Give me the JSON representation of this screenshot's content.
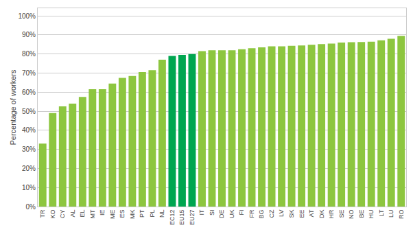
{
  "chart_data": {
    "type": "bar",
    "categories": [
      "TR",
      "KO",
      "CY",
      "AL",
      "EL",
      "MT",
      "IE",
      "ME",
      "ES",
      "MK",
      "PT",
      "PL",
      "NL",
      "EC12",
      "EU15",
      "EU27",
      "IT",
      "SI",
      "DE",
      "UK",
      "FI",
      "FR",
      "BG",
      "CZ",
      "LV",
      "SK",
      "EE",
      "AT",
      "DK",
      "HR",
      "SE",
      "NO",
      "BE",
      "HU",
      "LT",
      "LU",
      "RO"
    ],
    "values": [
      0.33,
      0.49,
      0.525,
      0.54,
      0.575,
      0.615,
      0.615,
      0.645,
      0.675,
      0.685,
      0.705,
      0.715,
      0.77,
      0.79,
      0.795,
      0.8,
      0.815,
      0.82,
      0.82,
      0.82,
      0.825,
      0.83,
      0.835,
      0.84,
      0.84,
      0.843,
      0.845,
      0.848,
      0.852,
      0.855,
      0.86,
      0.862,
      0.863,
      0.865,
      0.872,
      0.88,
      0.895
    ],
    "colors": [
      "#8dc63f",
      "#8dc63f",
      "#8dc63f",
      "#8dc63f",
      "#8dc63f",
      "#8dc63f",
      "#8dc63f",
      "#8dc63f",
      "#8dc63f",
      "#8dc63f",
      "#8dc63f",
      "#8dc63f",
      "#8dc63f",
      "#00a650",
      "#00a650",
      "#00a650",
      "#8dc63f",
      "#8dc63f",
      "#8dc63f",
      "#8dc63f",
      "#8dc63f",
      "#8dc63f",
      "#8dc63f",
      "#8dc63f",
      "#8dc63f",
      "#8dc63f",
      "#8dc63f",
      "#8dc63f",
      "#8dc63f",
      "#8dc63f",
      "#8dc63f",
      "#8dc63f",
      "#8dc63f",
      "#8dc63f",
      "#8dc63f",
      "#8dc63f",
      "#8dc63f"
    ],
    "ylabel": "Percentage of workers",
    "ylim": [
      0,
      1.04
    ],
    "yticks": [
      {
        "value": 0.0,
        "label": "0%"
      },
      {
        "value": 0.1,
        "label": "10%"
      },
      {
        "value": 0.2,
        "label": "20%"
      },
      {
        "value": 0.3,
        "label": "30%"
      },
      {
        "value": 0.4,
        "label": "40%"
      },
      {
        "value": 0.5,
        "label": "50%"
      },
      {
        "value": 0.6,
        "label": "60%"
      },
      {
        "value": 0.7,
        "label": "70%"
      },
      {
        "value": 0.8,
        "label": "80%"
      },
      {
        "value": 0.9,
        "label": "90%"
      },
      {
        "value": 1.0,
        "label": "100%"
      }
    ],
    "grid": true
  }
}
